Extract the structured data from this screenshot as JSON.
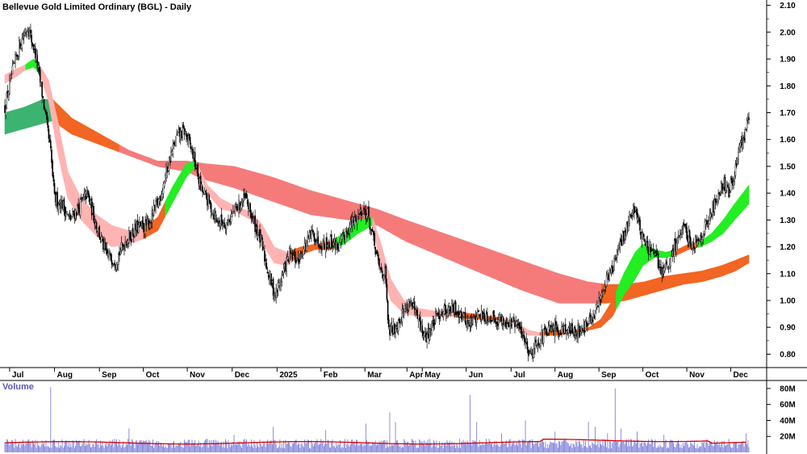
{
  "chart_data": {
    "type": "candlestick",
    "title": "Bellevue Gold Limited Ordinary (BGL) - Daily",
    "volume_label": "Volume",
    "price_axis": {
      "ticks": [
        "2.10",
        "2.00",
        "1.90",
        "1.80",
        "1.70",
        "1.60",
        "1.50",
        "1.40",
        "1.30",
        "1.20",
        "1.10",
        "1.00",
        "0.90",
        "0.80"
      ],
      "ylim": [
        0.75,
        2.12
      ]
    },
    "volume_axis": {
      "ticks": [
        "80M",
        "60M",
        "40M",
        "20M"
      ],
      "ylim": [
        0,
        90
      ]
    },
    "x_ticks": [
      "Jul",
      "Aug",
      "Sep",
      "Oct",
      "Nov",
      "Dec",
      "2025",
      "Feb",
      "Mar",
      "Apr",
      "May",
      "Jun",
      "Jul",
      "Aug",
      "Sep",
      "Oct",
      "Nov",
      "Dec"
    ],
    "x_tick_index": [
      5,
      52,
      99,
      145,
      191,
      238,
      285,
      331,
      377,
      421,
      437,
      483,
      530,
      576,
      622,
      668,
      714,
      760
    ],
    "num_bars": 780,
    "colors": {
      "candle": "#000000",
      "volume_bar": "#8080d8",
      "volume_avg": "#e00000",
      "ribbon_down_short": "#ffb3b3",
      "ribbon_down_long": "#f57b7b",
      "ribbon_up_short": "#22ee22",
      "ribbon_up_long": "#3cb371",
      "ribbon_up_weak": "#f26522",
      "grid_line": "#999999"
    },
    "price_series": [
      [
        0,
        1.72
      ],
      [
        8,
        1.85
      ],
      [
        16,
        1.96
      ],
      [
        24,
        2.02
      ],
      [
        32,
        1.92
      ],
      [
        40,
        1.75
      ],
      [
        48,
        1.55
      ],
      [
        52,
        1.38
      ],
      [
        60,
        1.36
      ],
      [
        68,
        1.3
      ],
      [
        78,
        1.35
      ],
      [
        86,
        1.4
      ],
      [
        96,
        1.28
      ],
      [
        106,
        1.17
      ],
      [
        116,
        1.15
      ],
      [
        126,
        1.22
      ],
      [
        138,
        1.27
      ],
      [
        150,
        1.28
      ],
      [
        162,
        1.38
      ],
      [
        172,
        1.52
      ],
      [
        180,
        1.61
      ],
      [
        188,
        1.63
      ],
      [
        196,
        1.56
      ],
      [
        205,
        1.42
      ],
      [
        214,
        1.36
      ],
      [
        222,
        1.3
      ],
      [
        232,
        1.29
      ],
      [
        242,
        1.34
      ],
      [
        252,
        1.38
      ],
      [
        260,
        1.3
      ],
      [
        268,
        1.22
      ],
      [
        276,
        1.1
      ],
      [
        283,
        1.02
      ],
      [
        290,
        1.09
      ],
      [
        298,
        1.17
      ],
      [
        306,
        1.15
      ],
      [
        314,
        1.2
      ],
      [
        322,
        1.25
      ],
      [
        332,
        1.21
      ],
      [
        342,
        1.22
      ],
      [
        350,
        1.2
      ],
      [
        358,
        1.26
      ],
      [
        366,
        1.3
      ],
      [
        374,
        1.34
      ],
      [
        380,
        1.32
      ],
      [
        386,
        1.22
      ],
      [
        392,
        1.12
      ],
      [
        398,
        1.1
      ],
      [
        402,
        0.88
      ],
      [
        408,
        0.9
      ],
      [
        416,
        0.95
      ],
      [
        424,
        1.0
      ],
      [
        432,
        0.93
      ],
      [
        440,
        0.86
      ],
      [
        448,
        0.91
      ],
      [
        456,
        0.96
      ],
      [
        466,
        0.97
      ],
      [
        476,
        0.96
      ],
      [
        486,
        0.91
      ],
      [
        496,
        0.95
      ],
      [
        506,
        0.94
      ],
      [
        516,
        0.93
      ],
      [
        526,
        0.92
      ],
      [
        536,
        0.91
      ],
      [
        544,
        0.86
      ],
      [
        550,
        0.8
      ],
      [
        558,
        0.85
      ],
      [
        566,
        0.88
      ],
      [
        576,
        0.89
      ],
      [
        586,
        0.9
      ],
      [
        596,
        0.88
      ],
      [
        606,
        0.9
      ],
      [
        616,
        0.93
      ],
      [
        624,
        1.02
      ],
      [
        630,
        1.08
      ],
      [
        636,
        1.12
      ],
      [
        642,
        1.18
      ],
      [
        648,
        1.24
      ],
      [
        654,
        1.31
      ],
      [
        660,
        1.35
      ],
      [
        666,
        1.25
      ],
      [
        672,
        1.2
      ],
      [
        680,
        1.17
      ],
      [
        688,
        1.11
      ],
      [
        696,
        1.13
      ],
      [
        704,
        1.24
      ],
      [
        712,
        1.26
      ],
      [
        720,
        1.21
      ],
      [
        728,
        1.24
      ],
      [
        736,
        1.29
      ],
      [
        744,
        1.37
      ],
      [
        752,
        1.44
      ],
      [
        758,
        1.4
      ],
      [
        764,
        1.48
      ],
      [
        770,
        1.57
      ],
      [
        776,
        1.64
      ],
      [
        779,
        1.68
      ]
    ],
    "ribbons": [
      {
        "name": "short_mma",
        "segments": [
          {
            "from": 0,
            "to": 22,
            "color": "#ffb3b3"
          },
          {
            "from": 22,
            "to": 36,
            "color": "#22ee22"
          },
          {
            "from": 36,
            "to": 145,
            "color": "#ffb3b3"
          },
          {
            "from": 145,
            "to": 168,
            "color": "#f26522"
          },
          {
            "from": 168,
            "to": 200,
            "color": "#22ee22"
          },
          {
            "from": 200,
            "to": 282,
            "color": "#ffb3b3"
          },
          {
            "from": 282,
            "to": 300,
            "color": "#ffb3b3"
          },
          {
            "from": 300,
            "to": 345,
            "color": "#f26522"
          },
          {
            "from": 345,
            "to": 385,
            "color": "#22ee22"
          },
          {
            "from": 385,
            "to": 470,
            "color": "#ffb3b3"
          },
          {
            "from": 470,
            "to": 520,
            "color": "#f26522"
          },
          {
            "from": 520,
            "to": 560,
            "color": "#ffb3b3"
          },
          {
            "from": 560,
            "to": 640,
            "color": "#f26522"
          },
          {
            "from": 640,
            "to": 700,
            "color": "#22ee22"
          },
          {
            "from": 700,
            "to": 725,
            "color": "#f26522"
          },
          {
            "from": 725,
            "to": 779,
            "color": "#22ee22"
          }
        ],
        "upper": [
          [
            0,
            1.84
          ],
          [
            10,
            1.86
          ],
          [
            22,
            1.88
          ],
          [
            30,
            1.9
          ],
          [
            36,
            1.88
          ],
          [
            46,
            1.82
          ],
          [
            56,
            1.66
          ],
          [
            66,
            1.48
          ],
          [
            80,
            1.38
          ],
          [
            96,
            1.32
          ],
          [
            112,
            1.28
          ],
          [
            130,
            1.26
          ],
          [
            145,
            1.27
          ],
          [
            160,
            1.31
          ],
          [
            175,
            1.42
          ],
          [
            190,
            1.51
          ],
          [
            200,
            1.52
          ],
          [
            212,
            1.43
          ],
          [
            226,
            1.38
          ],
          [
            242,
            1.35
          ],
          [
            258,
            1.33
          ],
          [
            270,
            1.28
          ],
          [
            282,
            1.2
          ],
          [
            295,
            1.18
          ],
          [
            310,
            1.2
          ],
          [
            325,
            1.21
          ],
          [
            340,
            1.22
          ],
          [
            355,
            1.25
          ],
          [
            370,
            1.3
          ],
          [
            385,
            1.31
          ],
          [
            394,
            1.21
          ],
          [
            404,
            1.08
          ],
          [
            418,
            1.0
          ],
          [
            434,
            0.97
          ],
          [
            452,
            0.96
          ],
          [
            470,
            0.96
          ],
          [
            490,
            0.95
          ],
          [
            510,
            0.94
          ],
          [
            530,
            0.93
          ],
          [
            548,
            0.89
          ],
          [
            560,
            0.88
          ],
          [
            578,
            0.89
          ],
          [
            596,
            0.89
          ],
          [
            612,
            0.9
          ],
          [
            624,
            0.93
          ],
          [
            636,
            1.0
          ],
          [
            648,
            1.1
          ],
          [
            660,
            1.18
          ],
          [
            668,
            1.21
          ],
          [
            680,
            1.19
          ],
          [
            692,
            1.18
          ],
          [
            704,
            1.19
          ],
          [
            716,
            1.21
          ],
          [
            728,
            1.22
          ],
          [
            740,
            1.25
          ],
          [
            752,
            1.3
          ],
          [
            764,
            1.36
          ],
          [
            779,
            1.43
          ]
        ],
        "lower": [
          [
            0,
            1.81
          ],
          [
            10,
            1.83
          ],
          [
            22,
            1.86
          ],
          [
            30,
            1.87
          ],
          [
            36,
            1.85
          ],
          [
            46,
            1.74
          ],
          [
            56,
            1.54
          ],
          [
            66,
            1.38
          ],
          [
            80,
            1.3
          ],
          [
            96,
            1.24
          ],
          [
            112,
            1.2
          ],
          [
            130,
            1.21
          ],
          [
            145,
            1.23
          ],
          [
            160,
            1.26
          ],
          [
            175,
            1.36
          ],
          [
            190,
            1.46
          ],
          [
            200,
            1.5
          ],
          [
            212,
            1.4
          ],
          [
            226,
            1.34
          ],
          [
            242,
            1.33
          ],
          [
            258,
            1.3
          ],
          [
            270,
            1.21
          ],
          [
            282,
            1.14
          ],
          [
            295,
            1.13
          ],
          [
            310,
            1.17
          ],
          [
            325,
            1.19
          ],
          [
            340,
            1.19
          ],
          [
            355,
            1.21
          ],
          [
            370,
            1.25
          ],
          [
            385,
            1.28
          ],
          [
            394,
            1.12
          ],
          [
            404,
            1.0
          ],
          [
            418,
            0.95
          ],
          [
            434,
            0.94
          ],
          [
            452,
            0.94
          ],
          [
            470,
            0.94
          ],
          [
            490,
            0.93
          ],
          [
            510,
            0.93
          ],
          [
            530,
            0.92
          ],
          [
            548,
            0.87
          ],
          [
            560,
            0.87
          ],
          [
            578,
            0.87
          ],
          [
            596,
            0.88
          ],
          [
            612,
            0.89
          ],
          [
            624,
            0.9
          ],
          [
            636,
            0.94
          ],
          [
            648,
            1.02
          ],
          [
            660,
            1.08
          ],
          [
            668,
            1.13
          ],
          [
            680,
            1.16
          ],
          [
            692,
            1.16
          ],
          [
            704,
            1.17
          ],
          [
            716,
            1.19
          ],
          [
            728,
            1.2
          ],
          [
            740,
            1.22
          ],
          [
            752,
            1.25
          ],
          [
            764,
            1.3
          ],
          [
            779,
            1.36
          ]
        ]
      },
      {
        "name": "long_mma",
        "segments": [
          {
            "from": 0,
            "to": 50,
            "color": "#3cb371"
          },
          {
            "from": 50,
            "to": 120,
            "color": "#f26522"
          },
          {
            "from": 120,
            "to": 625,
            "color": "#f57b7b"
          },
          {
            "from": 625,
            "to": 779,
            "color": "#f26522"
          }
        ],
        "upper": [
          [
            0,
            1.7
          ],
          [
            20,
            1.72
          ],
          [
            40,
            1.75
          ],
          [
            50,
            1.75
          ],
          [
            70,
            1.68
          ],
          [
            100,
            1.62
          ],
          [
            130,
            1.56
          ],
          [
            160,
            1.52
          ],
          [
            190,
            1.52
          ],
          [
            210,
            1.51
          ],
          [
            240,
            1.5
          ],
          [
            280,
            1.46
          ],
          [
            320,
            1.41
          ],
          [
            360,
            1.37
          ],
          [
            390,
            1.34
          ],
          [
            420,
            1.3
          ],
          [
            460,
            1.25
          ],
          [
            500,
            1.2
          ],
          [
            540,
            1.15
          ],
          [
            580,
            1.1
          ],
          [
            610,
            1.07
          ],
          [
            630,
            1.06
          ],
          [
            650,
            1.06
          ],
          [
            670,
            1.07
          ],
          [
            690,
            1.09
          ],
          [
            710,
            1.1
          ],
          [
            730,
            1.11
          ],
          [
            750,
            1.13
          ],
          [
            765,
            1.15
          ],
          [
            779,
            1.17
          ]
        ],
        "lower": [
          [
            0,
            1.62
          ],
          [
            20,
            1.64
          ],
          [
            40,
            1.66
          ],
          [
            50,
            1.67
          ],
          [
            70,
            1.62
          ],
          [
            100,
            1.58
          ],
          [
            130,
            1.54
          ],
          [
            160,
            1.5
          ],
          [
            190,
            1.48
          ],
          [
            210,
            1.45
          ],
          [
            240,
            1.42
          ],
          [
            280,
            1.37
          ],
          [
            320,
            1.32
          ],
          [
            360,
            1.3
          ],
          [
            390,
            1.28
          ],
          [
            420,
            1.22
          ],
          [
            460,
            1.16
          ],
          [
            500,
            1.1
          ],
          [
            540,
            1.04
          ],
          [
            580,
            0.99
          ],
          [
            610,
            0.99
          ],
          [
            630,
            0.99
          ],
          [
            650,
            1.0
          ],
          [
            670,
            1.02
          ],
          [
            690,
            1.04
          ],
          [
            710,
            1.06
          ],
          [
            730,
            1.07
          ],
          [
            750,
            1.09
          ],
          [
            765,
            1.11
          ],
          [
            779,
            1.14
          ]
        ]
      }
    ],
    "volume_avg_level": 12,
    "volume_spikes": [
      [
        48,
        82
      ],
      [
        130,
        30
      ],
      [
        240,
        22
      ],
      [
        281,
        32
      ],
      [
        336,
        28
      ],
      [
        378,
        36
      ],
      [
        403,
        50
      ],
      [
        409,
        38
      ],
      [
        487,
        72
      ],
      [
        494,
        38
      ],
      [
        520,
        24
      ],
      [
        545,
        40
      ],
      [
        576,
        26
      ],
      [
        611,
        38
      ],
      [
        618,
        32
      ],
      [
        631,
        24
      ],
      [
        639,
        80
      ],
      [
        645,
        30
      ],
      [
        662,
        26
      ],
      [
        690,
        22
      ],
      [
        730,
        14
      ],
      [
        776,
        24
      ]
    ]
  }
}
